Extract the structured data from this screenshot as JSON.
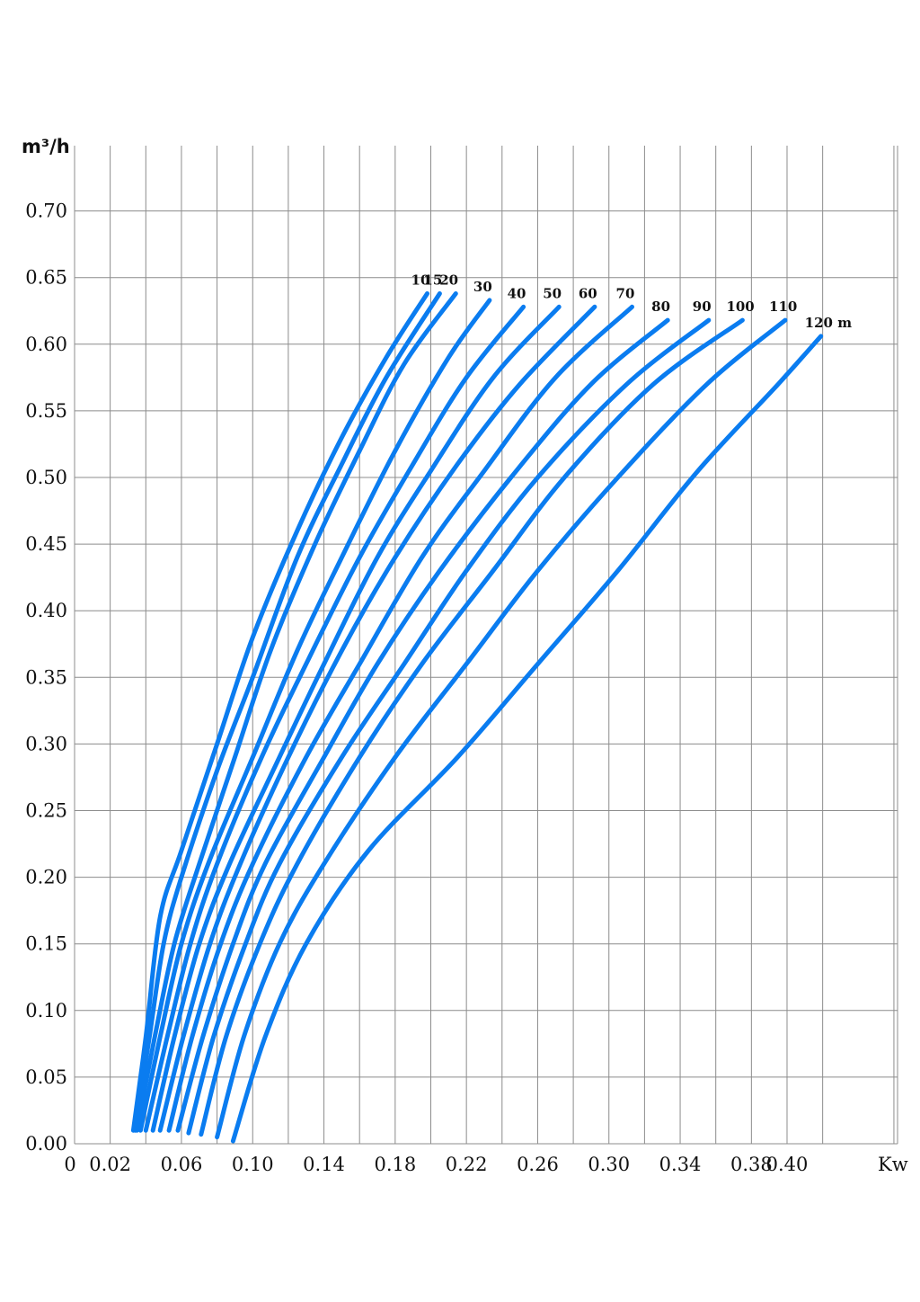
{
  "chart_data": {
    "type": "line",
    "title": "",
    "xlabel": "Kw",
    "ylabel": "m³/h",
    "xlim": [
      0,
      0.46
    ],
    "ylim": [
      0,
      0.745
    ],
    "grid": true,
    "x_ticks": [
      0,
      0.02,
      0.06,
      0.1,
      0.14,
      0.18,
      0.22,
      0.26,
      0.3,
      0.34,
      0.38,
      0.4
    ],
    "x_tick_labels": [
      "0",
      "0.02",
      "0.06",
      "0.10",
      "0.14",
      "0.18",
      "0.22",
      "0.26",
      "0.30",
      "0.34",
      "0.38",
      "0.40"
    ],
    "x_grid": [
      0.02,
      0.04,
      0.06,
      0.08,
      0.1,
      0.12,
      0.14,
      0.16,
      0.18,
      0.2,
      0.22,
      0.24,
      0.26,
      0.28,
      0.3,
      0.32,
      0.34,
      0.36,
      0.38,
      0.4,
      0.42,
      0.46
    ],
    "y_ticks": [
      0,
      0.05,
      0.1,
      0.15,
      0.2,
      0.25,
      0.3,
      0.35,
      0.4,
      0.45,
      0.5,
      0.55,
      0.6,
      0.65,
      0.7
    ],
    "y_tick_labels": [
      "0.00",
      "0.05",
      "0.10",
      "0.15",
      "0.20",
      "0.25",
      "0.30",
      "0.35",
      "0.40",
      "0.45",
      "0.50",
      "0.55",
      "0.60",
      "0.65",
      "0.70"
    ],
    "y_grid": [
      0.05,
      0.1,
      0.15,
      0.2,
      0.25,
      0.3,
      0.35,
      0.4,
      0.45,
      0.5,
      0.55,
      0.6,
      0.65,
      0.7
    ],
    "line_color": "#0a7cf0",
    "series": [
      {
        "name": "10",
        "points": [
          [
            0.033,
            0.01
          ],
          [
            0.04,
            0.08
          ],
          [
            0.048,
            0.17
          ],
          [
            0.06,
            0.22
          ],
          [
            0.08,
            0.3
          ],
          [
            0.1,
            0.38
          ],
          [
            0.125,
            0.46
          ],
          [
            0.15,
            0.53
          ],
          [
            0.175,
            0.59
          ],
          [
            0.198,
            0.638
          ]
        ]
      },
      {
        "name": "15",
        "points": [
          [
            0.034,
            0.01
          ],
          [
            0.042,
            0.08
          ],
          [
            0.05,
            0.15
          ],
          [
            0.06,
            0.2
          ],
          [
            0.08,
            0.28
          ],
          [
            0.1,
            0.35
          ],
          [
            0.125,
            0.44
          ],
          [
            0.15,
            0.51
          ],
          [
            0.175,
            0.575
          ],
          [
            0.205,
            0.638
          ]
        ]
      },
      {
        "name": "20",
        "points": [
          [
            0.035,
            0.01
          ],
          [
            0.045,
            0.08
          ],
          [
            0.056,
            0.15
          ],
          [
            0.07,
            0.21
          ],
          [
            0.09,
            0.29
          ],
          [
            0.11,
            0.37
          ],
          [
            0.135,
            0.45
          ],
          [
            0.16,
            0.52
          ],
          [
            0.185,
            0.585
          ],
          [
            0.214,
            0.638
          ]
        ]
      },
      {
        "name": "30",
        "points": [
          [
            0.037,
            0.01
          ],
          [
            0.048,
            0.08
          ],
          [
            0.06,
            0.15
          ],
          [
            0.075,
            0.21
          ],
          [
            0.1,
            0.29
          ],
          [
            0.125,
            0.37
          ],
          [
            0.15,
            0.44
          ],
          [
            0.18,
            0.52
          ],
          [
            0.21,
            0.59
          ],
          [
            0.233,
            0.633
          ]
        ]
      },
      {
        "name": "40",
        "points": [
          [
            0.04,
            0.01
          ],
          [
            0.052,
            0.08
          ],
          [
            0.065,
            0.15
          ],
          [
            0.08,
            0.21
          ],
          [
            0.105,
            0.29
          ],
          [
            0.13,
            0.36
          ],
          [
            0.16,
            0.44
          ],
          [
            0.19,
            0.51
          ],
          [
            0.22,
            0.575
          ],
          [
            0.252,
            0.628
          ]
        ]
      },
      {
        "name": "50",
        "points": [
          [
            0.044,
            0.01
          ],
          [
            0.056,
            0.08
          ],
          [
            0.07,
            0.15
          ],
          [
            0.087,
            0.21
          ],
          [
            0.115,
            0.29
          ],
          [
            0.14,
            0.36
          ],
          [
            0.17,
            0.44
          ],
          [
            0.2,
            0.505
          ],
          [
            0.235,
            0.575
          ],
          [
            0.272,
            0.628
          ]
        ]
      },
      {
        "name": "60",
        "points": [
          [
            0.048,
            0.01
          ],
          [
            0.061,
            0.08
          ],
          [
            0.076,
            0.15
          ],
          [
            0.093,
            0.21
          ],
          [
            0.12,
            0.29
          ],
          [
            0.15,
            0.37
          ],
          [
            0.18,
            0.44
          ],
          [
            0.215,
            0.51
          ],
          [
            0.25,
            0.57
          ],
          [
            0.292,
            0.628
          ]
        ]
      },
      {
        "name": "70",
        "points": [
          [
            0.053,
            0.01
          ],
          [
            0.066,
            0.08
          ],
          [
            0.082,
            0.15
          ],
          [
            0.1,
            0.21
          ],
          [
            0.13,
            0.29
          ],
          [
            0.16,
            0.36
          ],
          [
            0.195,
            0.44
          ],
          [
            0.23,
            0.505
          ],
          [
            0.27,
            0.575
          ],
          [
            0.313,
            0.628
          ]
        ]
      },
      {
        "name": "80",
        "points": [
          [
            0.058,
            0.01
          ],
          [
            0.072,
            0.08
          ],
          [
            0.089,
            0.15
          ],
          [
            0.107,
            0.21
          ],
          [
            0.14,
            0.29
          ],
          [
            0.17,
            0.36
          ],
          [
            0.205,
            0.43
          ],
          [
            0.245,
            0.5
          ],
          [
            0.29,
            0.57
          ],
          [
            0.333,
            0.618
          ]
        ]
      },
      {
        "name": "90",
        "points": [
          [
            0.064,
            0.008
          ],
          [
            0.078,
            0.08
          ],
          [
            0.096,
            0.15
          ],
          [
            0.115,
            0.21
          ],
          [
            0.15,
            0.29
          ],
          [
            0.185,
            0.36
          ],
          [
            0.22,
            0.43
          ],
          [
            0.26,
            0.5
          ],
          [
            0.31,
            0.57
          ],
          [
            0.356,
            0.618
          ]
        ]
      },
      {
        "name": "100",
        "points": [
          [
            0.071,
            0.007
          ],
          [
            0.085,
            0.08
          ],
          [
            0.104,
            0.15
          ],
          [
            0.125,
            0.21
          ],
          [
            0.16,
            0.29
          ],
          [
            0.195,
            0.36
          ],
          [
            0.235,
            0.43
          ],
          [
            0.275,
            0.5
          ],
          [
            0.325,
            0.57
          ],
          [
            0.375,
            0.618
          ]
        ]
      },
      {
        "name": "110",
        "points": [
          [
            0.08,
            0.005
          ],
          [
            0.095,
            0.08
          ],
          [
            0.115,
            0.15
          ],
          [
            0.14,
            0.21
          ],
          [
            0.18,
            0.29
          ],
          [
            0.22,
            0.36
          ],
          [
            0.26,
            0.43
          ],
          [
            0.305,
            0.5
          ],
          [
            0.355,
            0.57
          ],
          [
            0.399,
            0.618
          ]
        ]
      },
      {
        "name": "120 m",
        "points": [
          [
            0.089,
            0.002
          ],
          [
            0.107,
            0.08
          ],
          [
            0.13,
            0.15
          ],
          [
            0.165,
            0.22
          ],
          [
            0.215,
            0.29
          ],
          [
            0.26,
            0.36
          ],
          [
            0.305,
            0.43
          ],
          [
            0.35,
            0.505
          ],
          [
            0.395,
            0.57
          ],
          [
            0.419,
            0.606
          ]
        ]
      }
    ]
  }
}
